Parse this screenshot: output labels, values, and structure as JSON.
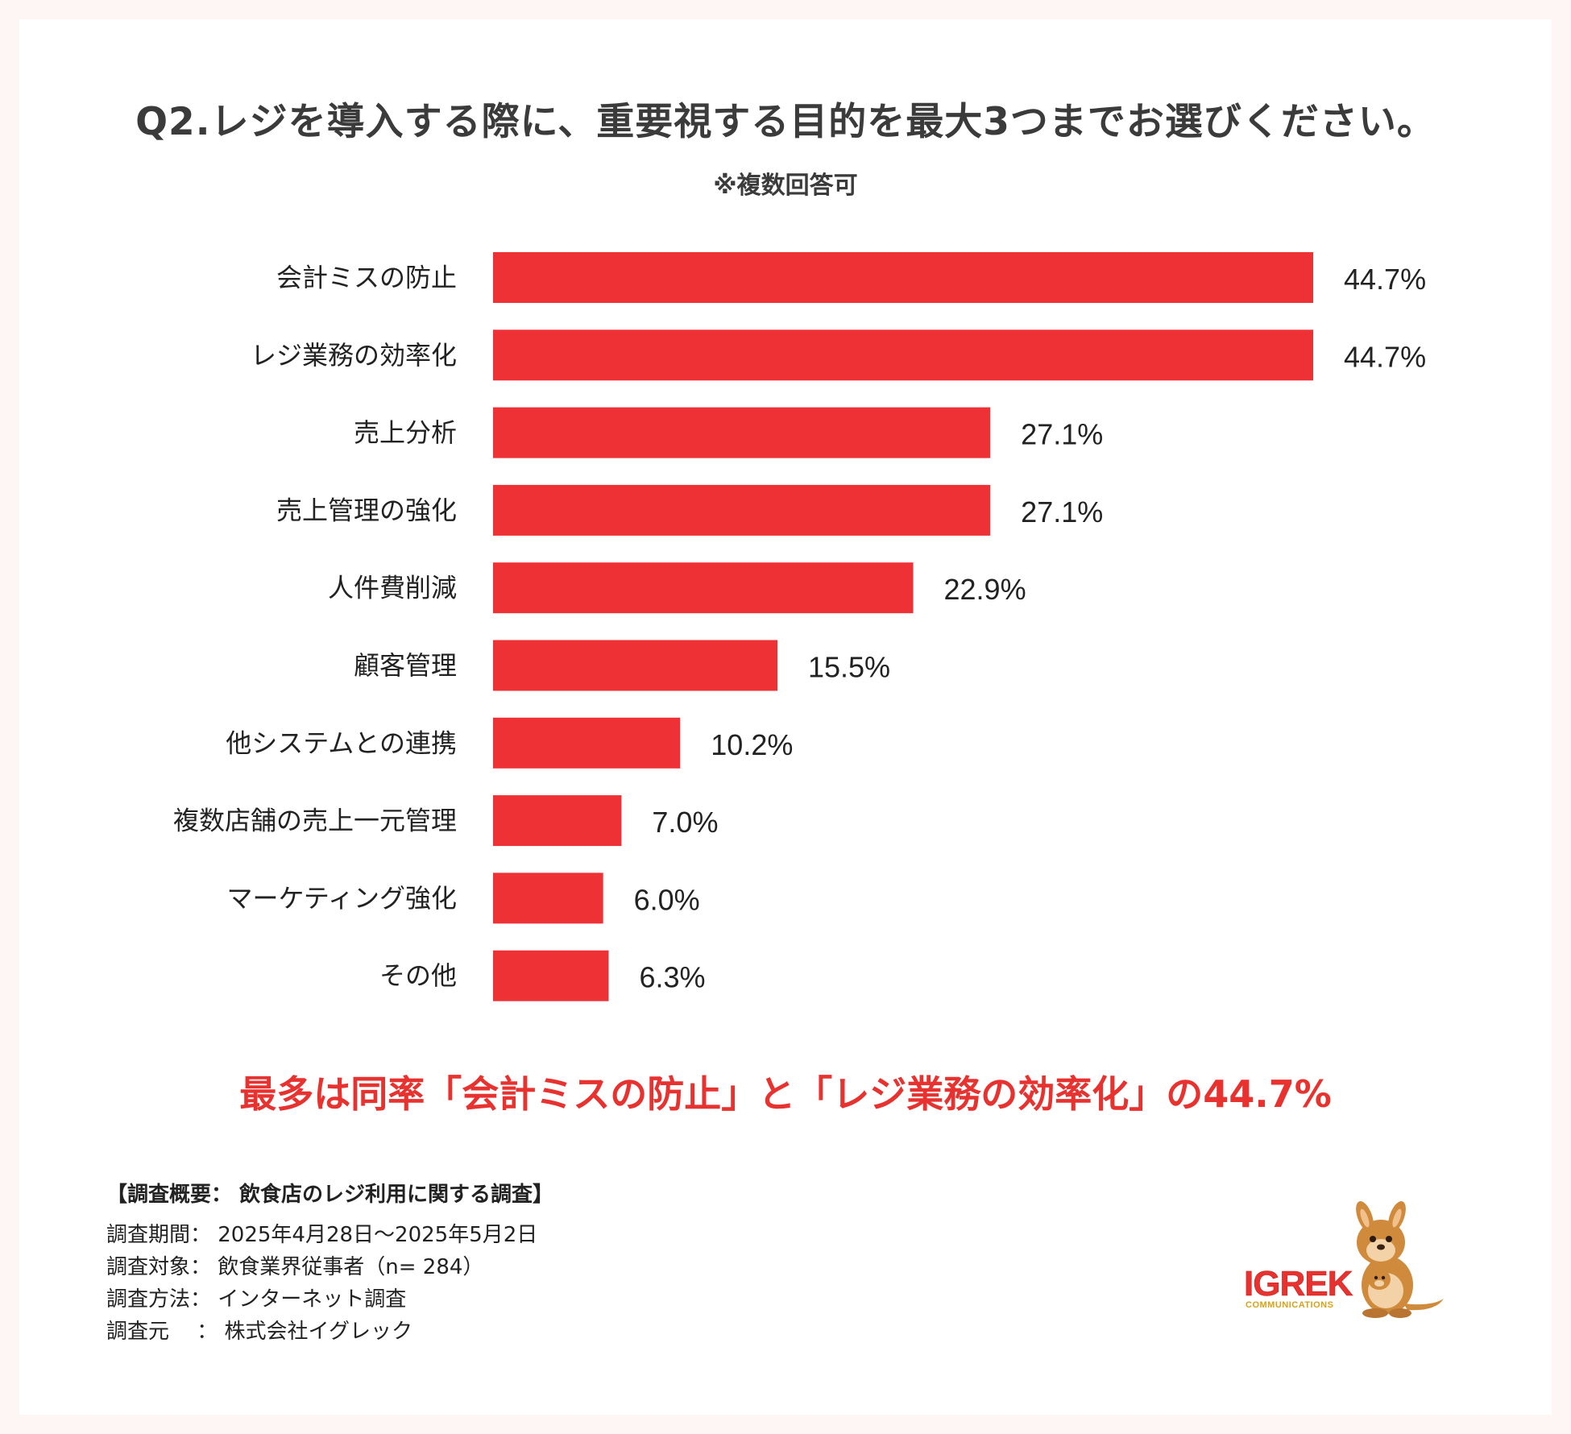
{
  "header": {
    "title": "Q2.レジを導入する際に、重要視する目的を最大3つまでお選びください。",
    "subtitle": "※複数回答可"
  },
  "chart_data": {
    "type": "bar",
    "orientation": "horizontal",
    "categories": [
      "会計ミスの防止",
      "レジ業務の効率化",
      "売上分析",
      "売上管理の強化",
      "人件費削減",
      "顧客管理",
      "他システムとの連携",
      "複数店舗の売上一元管理",
      "マーケティング強化",
      "その他"
    ],
    "values": [
      44.7,
      44.7,
      27.1,
      27.1,
      22.9,
      15.5,
      10.2,
      7.0,
      6.0,
      6.3
    ],
    "value_labels": [
      "44.7%",
      "44.7%",
      "27.1%",
      "27.1%",
      "22.9%",
      "15.5%",
      "10.2%",
      "7.0%",
      "6.0%",
      "6.3%"
    ],
    "unit": "%",
    "xlim": [
      0,
      44.7
    ],
    "bar_color": "#ee3135",
    "grid": false,
    "legend": "none"
  },
  "headline": "最多は同率「会計ミスの防止」と「レジ業務の効率化」の44.7%",
  "survey": {
    "heading": "【調査概要： 飲食店のレジ利用に関する調査】",
    "rows": [
      "調査期間： 2025年4月28日～2025年5月2日",
      "調査対象： 飲食業界従事者（n= 284）",
      "調査方法： インターネット調査",
      "調査元　 ： 株式会社イグレック"
    ]
  },
  "logo": {
    "name": "IGREK",
    "tagline": "COMMUNICATIONS",
    "mascot": "kangaroo-mascot",
    "colors": {
      "text": "#e8322f",
      "tagline": "#d8a21a",
      "mascot": "#d08a3c"
    }
  },
  "colors": {
    "accent": "#e8322f",
    "bar": "#ee3135",
    "background": "#fdf6f5",
    "card": "#ffffff"
  }
}
